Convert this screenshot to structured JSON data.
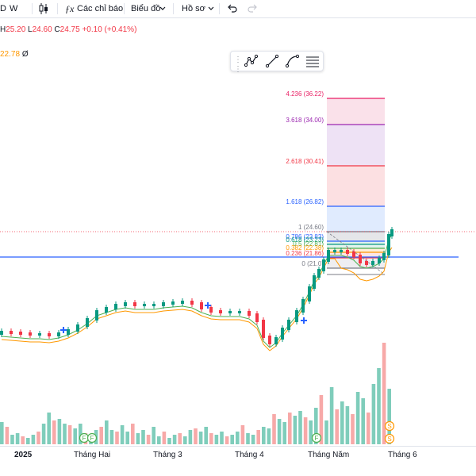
{
  "toolbar": {
    "interval": "D",
    "interval_menu": "W",
    "indicators_label": "Các chỉ báo",
    "chart_label": "Biểu đồ",
    "profile_label": "Hồ sơ"
  },
  "legend": {
    "h_label": "H",
    "h_value": "25.20",
    "l_label": "L",
    "l_value": "24.60",
    "c_label": "C",
    "c_value": "24.75",
    "change": "+0.10 (+0.41%)"
  },
  "moving_average": {
    "value": "22.78",
    "suffix": "Ø"
  },
  "fib": {
    "levels": [
      {
        "label": "4.236 (36.22)",
        "value": 36.22,
        "color": "#e91e63"
      },
      {
        "label": "3.618 (34.00)",
        "value": 34.0,
        "color": "#9c27b0"
      },
      {
        "label": "2.618 (30.41)",
        "value": 30.41,
        "color": "#f23645"
      },
      {
        "label": "1.618 (26.82)",
        "value": 26.82,
        "color": "#2962ff"
      },
      {
        "label": "1 (24.60)",
        "value": 24.6,
        "color": "#787b86"
      },
      {
        "label": "0.786 (23.83)",
        "value": 23.83,
        "color": "#2962ff"
      },
      {
        "label": "0.618 (23.23)",
        "value": 23.23,
        "color": "#089981"
      },
      {
        "label": "0.5 (22.81)",
        "value": 22.81,
        "color": "#4caf50"
      },
      {
        "label": "0.382 (22.38)",
        "value": 22.38,
        "color": "#ff9800"
      },
      {
        "label": "0.236 (21.86)",
        "value": 21.86,
        "color": "#f23645"
      },
      {
        "label": "0 (21.0)",
        "value": 21.0,
        "color": "#787b86"
      }
    ]
  },
  "markers": {
    "earnings": "F",
    "split": "S"
  },
  "time_axis": [
    "2025",
    "Tháng Hai",
    "Tháng 3",
    "Tháng 4",
    "Tháng Năm",
    "Tháng 6"
  ],
  "colors": {
    "up": "#089981",
    "down": "#f23645",
    "ma_fast": "#4caf50",
    "ma_slow": "#ff9800",
    "hline": "#2962ff",
    "vol_up": "#7fcdbb",
    "vol_down": "#f7a9a8"
  },
  "icons": {
    "candles": "candlestick-icon",
    "indicators": "function-icon",
    "undo": "undo-icon",
    "redo": "redo-icon",
    "chevron": "chevron-down-icon"
  }
}
